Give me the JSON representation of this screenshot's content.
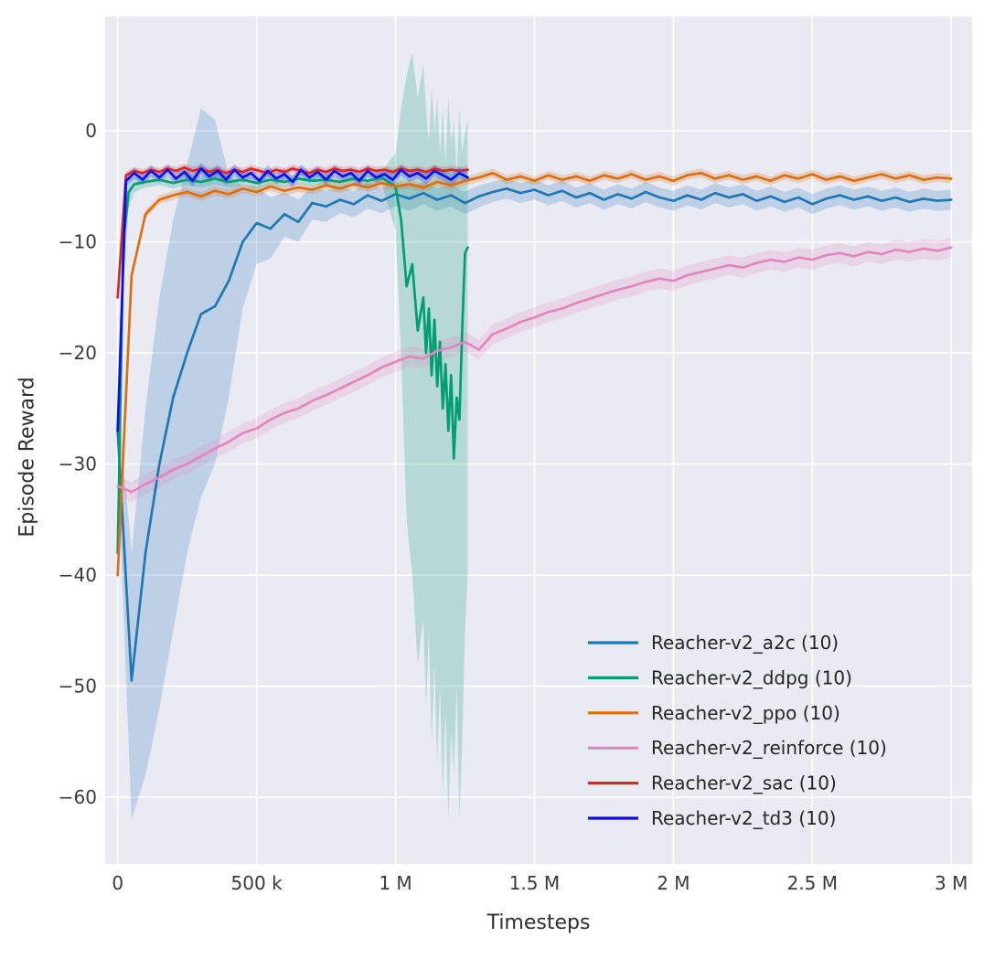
{
  "chart_data": {
    "type": "line",
    "title": "",
    "xlabel": "Timesteps",
    "ylabel": "Episode Reward",
    "xlim": [
      -45000,
      3075000
    ],
    "ylim": [
      -66,
      10.3
    ],
    "x_scale": 1000,
    "grid": true,
    "background": "#eaeaf2",
    "figure_background": "#ffffff",
    "grid_color": "#ffffff",
    "tick_color": "#3a3a3a",
    "label_color": "#2e2e2e",
    "legend_text_color": "#262626",
    "legend_position": "lower right",
    "xticks": [
      {
        "v": 0,
        "label": "0"
      },
      {
        "v": 500000,
        "label": "500 k"
      },
      {
        "v": 1000000,
        "label": "1 M"
      },
      {
        "v": 1500000,
        "label": "1.5 M"
      },
      {
        "v": 2000000,
        "label": "2 M"
      },
      {
        "v": 2500000,
        "label": "2.5 M"
      },
      {
        "v": 3000000,
        "label": "3 M"
      }
    ],
    "yticks": [
      {
        "v": 0,
        "label": "0"
      },
      {
        "v": -10,
        "label": "−10"
      },
      {
        "v": -20,
        "label": "−20"
      },
      {
        "v": -30,
        "label": "−30"
      },
      {
        "v": -40,
        "label": "−40"
      },
      {
        "v": -50,
        "label": "−50"
      },
      {
        "v": -60,
        "label": "−60"
      }
    ],
    "series": [
      {
        "id": "a2c",
        "name": "Reacher-v2_a2c (10)",
        "color": "#1f77b4",
        "x_start": 0,
        "x_step": 50,
        "y": [
          -27,
          -49.5,
          -38,
          -30,
          -24,
          -20,
          -16.5,
          -15.8,
          -13.5,
          -10,
          -8.3,
          -8.8,
          -7.5,
          -8.2,
          -6.5,
          -6.8,
          -6.2,
          -6.6,
          -5.8,
          -6.3,
          -5.7,
          -6.1,
          -5.6,
          -6.2,
          -5.8,
          -6.5,
          -5.9,
          -5.5,
          -5.2,
          -5.6,
          -5.3,
          -5.8,
          -5.4,
          -6.0,
          -5.6,
          -6.2,
          -5.7,
          -6.1,
          -5.5,
          -6.0,
          -6.3,
          -5.8,
          -6.2,
          -5.6,
          -6.0,
          -5.7,
          -6.3,
          -5.9,
          -6.4,
          -6.0,
          -6.6,
          -6.1,
          -5.8,
          -6.2,
          -5.9,
          -6.3,
          -6.0,
          -6.4,
          -6.1,
          -6.3,
          -6.2
        ],
        "lo": [
          -30,
          -62,
          -58,
          -52,
          -45,
          -38,
          -33,
          -30,
          -24,
          -16,
          -12,
          -11.5,
          -9.5,
          -10,
          -8,
          -8.2,
          -7.4,
          -7.8,
          -7,
          -7.4,
          -6.8,
          -7.2,
          -6.6,
          -7.2,
          -6.8,
          -7.5,
          -6.9,
          -6.4,
          -6.1,
          -6.5,
          -6.2,
          -6.7,
          -6.3,
          -6.9,
          -6.5,
          -7.1,
          -6.6,
          -7,
          -6.4,
          -6.9,
          -7.2,
          -6.7,
          -7.1,
          -6.5,
          -6.9,
          -6.6,
          -7.2,
          -6.8,
          -7.3,
          -6.9,
          -7.5,
          -7,
          -6.7,
          -7.1,
          -6.8,
          -7.2,
          -6.9,
          -7.3,
          -7,
          -7.2,
          -7.1
        ],
        "hi": [
          -24,
          -38,
          -25,
          -15,
          -8,
          -3,
          2,
          1,
          -4,
          -5,
          -5,
          -6,
          -5.5,
          -6.2,
          -5,
          -5.4,
          -5,
          -5.4,
          -4.6,
          -5.2,
          -4.6,
          -5,
          -4.6,
          -5.2,
          -4.8,
          -5.5,
          -4.9,
          -4.6,
          -4.3,
          -4.7,
          -4.4,
          -4.9,
          -4.5,
          -5.1,
          -4.7,
          -5.3,
          -4.8,
          -5.2,
          -4.6,
          -5.1,
          -5.4,
          -4.9,
          -5.3,
          -4.7,
          -5.1,
          -4.8,
          -5.4,
          -5,
          -5.5,
          -5.1,
          -5.7,
          -5.2,
          -4.9,
          -5.3,
          -5,
          -5.4,
          -5.1,
          -5.5,
          -5.2,
          -5.4,
          -5.3
        ]
      },
      {
        "id": "ddpg",
        "name": "Reacher-v2_ddpg (10)",
        "color": "#029e73",
        "x": [
          0,
          20,
          40,
          60,
          100,
          150,
          200,
          250,
          300,
          350,
          400,
          450,
          500,
          550,
          600,
          650,
          700,
          750,
          800,
          850,
          900,
          950,
          1000,
          1020,
          1040,
          1060,
          1080,
          1100,
          1110,
          1120,
          1130,
          1140,
          1150,
          1160,
          1170,
          1180,
          1190,
          1200,
          1210,
          1220,
          1230,
          1240,
          1250,
          1260
        ],
        "y": [
          -38,
          -10,
          -5.5,
          -4.8,
          -4.6,
          -4.4,
          -4.7,
          -4.4,
          -4.6,
          -4.3,
          -4.6,
          -4.4,
          -4.7,
          -4.4,
          -4.6,
          -4.3,
          -4.5,
          -4.4,
          -4.6,
          -4.3,
          -4.5,
          -4.2,
          -5.0,
          -8,
          -14,
          -12,
          -18,
          -15,
          -20,
          -16,
          -22,
          -17,
          -23,
          -19,
          -25,
          -21,
          -27,
          -22,
          -29.5,
          -24,
          -26,
          -18,
          -11,
          -10.5
        ],
        "lo": [
          -42,
          -14,
          -7,
          -5.5,
          -5.1,
          -4.9,
          -5.2,
          -4.9,
          -5.1,
          -4.8,
          -5.1,
          -4.9,
          -5.2,
          -4.9,
          -5.1,
          -4.8,
          -5.0,
          -4.9,
          -5.1,
          -4.8,
          -5.0,
          -4.7,
          -9,
          -20,
          -35,
          -40,
          -48,
          -44,
          -52,
          -45,
          -55,
          -48,
          -57,
          -50,
          -60,
          -52,
          -62,
          -54,
          -58,
          -50,
          -62,
          -55,
          -45,
          -40
        ],
        "hi": [
          -34,
          -7,
          -4.2,
          -4.2,
          -4.1,
          -3.9,
          -4.2,
          -3.9,
          -4.1,
          -3.8,
          -4.1,
          -3.9,
          -4.2,
          -3.9,
          -4.1,
          -3.8,
          -4.0,
          -3.9,
          -4.1,
          -3.8,
          -4.0,
          -3.7,
          -2,
          2,
          5,
          7,
          3,
          6,
          2,
          -1,
          4,
          0,
          3,
          -2,
          2,
          -3,
          3,
          -1,
          1,
          -4,
          2,
          -2,
          0,
          1
        ]
      },
      {
        "id": "ppo",
        "name": "Reacher-v2_ppo (10)",
        "color": "#dd6f0e",
        "x_start": 0,
        "x_step": 50,
        "band_width": 0.4,
        "y": [
          -40,
          -13,
          -7.5,
          -6.2,
          -5.8,
          -5.5,
          -5.9,
          -5.4,
          -5.7,
          -5.2,
          -5.5,
          -5.0,
          -5.4,
          -5.1,
          -5.3,
          -4.9,
          -5.2,
          -4.8,
          -5.1,
          -4.7,
          -5.0,
          -4.8,
          -5.1,
          -4.6,
          -4.9,
          -4.5,
          -4.2,
          -3.8,
          -4.4,
          -4.1,
          -4.5,
          -4.0,
          -4.4,
          -4.1,
          -4.5,
          -4.0,
          -4.3,
          -3.9,
          -4.4,
          -4.1,
          -4.5,
          -4.0,
          -3.8,
          -4.3,
          -4.0,
          -4.4,
          -4.1,
          -4.5,
          -4.0,
          -4.3,
          -3.9,
          -4.4,
          -4.1,
          -4.5,
          -4.2,
          -3.9,
          -4.3,
          -4.0,
          -4.4,
          -4.2,
          -4.3
        ]
      },
      {
        "id": "reinforce",
        "name": "Reacher-v2_reinforce (10)",
        "color": "#e287bd",
        "x_start": 0,
        "x_step": 50,
        "band_width": 0.9,
        "y": [
          -32,
          -32.5,
          -31.8,
          -31.2,
          -30.5,
          -30,
          -29.3,
          -28.6,
          -28,
          -27.2,
          -26.8,
          -26,
          -25.4,
          -25,
          -24.3,
          -23.8,
          -23.2,
          -22.6,
          -22,
          -21.3,
          -20.8,
          -20.3,
          -20.5,
          -19.8,
          -19.5,
          -19,
          -19.7,
          -18.3,
          -17.8,
          -17.2,
          -16.8,
          -16.3,
          -16,
          -15.5,
          -15.1,
          -14.7,
          -14.3,
          -14,
          -13.6,
          -13.3,
          -13.5,
          -13,
          -12.7,
          -12.4,
          -12.1,
          -12.3,
          -11.9,
          -11.6,
          -11.8,
          -11.4,
          -11.6,
          -11.2,
          -11,
          -11.3,
          -10.9,
          -11.1,
          -10.7,
          -10.9,
          -10.6,
          -10.8,
          -10.5
        ]
      },
      {
        "id": "sac",
        "name": "Reacher-v2_sac (10)",
        "color": "#d62728",
        "x_start": 0,
        "x_step": 30,
        "band_width": 0.35,
        "y": [
          -15,
          -4.0,
          -3.6,
          -3.8,
          -3.5,
          -3.7,
          -3.4,
          -3.6,
          -3.3,
          -3.6,
          -3.4,
          -3.7,
          -3.5,
          -3.8,
          -3.5,
          -3.7,
          -3.4,
          -3.6,
          -3.8,
          -3.5,
          -3.7,
          -3.4,
          -3.6,
          -3.8,
          -3.5,
          -3.7,
          -3.4,
          -3.6,
          -3.5,
          -3.7,
          -3.4,
          -3.6,
          -3.5,
          -3.7,
          -3.4,
          -3.6,
          -3.5,
          -3.7,
          -3.4,
          -3.6,
          -3.5,
          -3.6,
          -3.5
        ]
      },
      {
        "id": "td3",
        "name": "Reacher-v2_td3 (10)",
        "color": "#0b0bef",
        "x_start": 0,
        "x_step": 30,
        "band_width": 0.5,
        "y": [
          -27,
          -4.5,
          -3.8,
          -4.4,
          -3.6,
          -4.2,
          -3.5,
          -4.3,
          -3.7,
          -4.5,
          -3.4,
          -4.1,
          -3.6,
          -4.4,
          -3.5,
          -4.2,
          -3.8,
          -4.5,
          -3.6,
          -4.3,
          -3.9,
          -4.6,
          -3.5,
          -4.2,
          -3.7,
          -4.4,
          -3.6,
          -4.1,
          -3.8,
          -4.5,
          -3.6,
          -4.2,
          -3.9,
          -4.4,
          -3.5,
          -4.1,
          -3.8,
          -4.3,
          -3.6,
          -4.0,
          -4.4,
          -3.8,
          -4.2
        ]
      }
    ]
  }
}
